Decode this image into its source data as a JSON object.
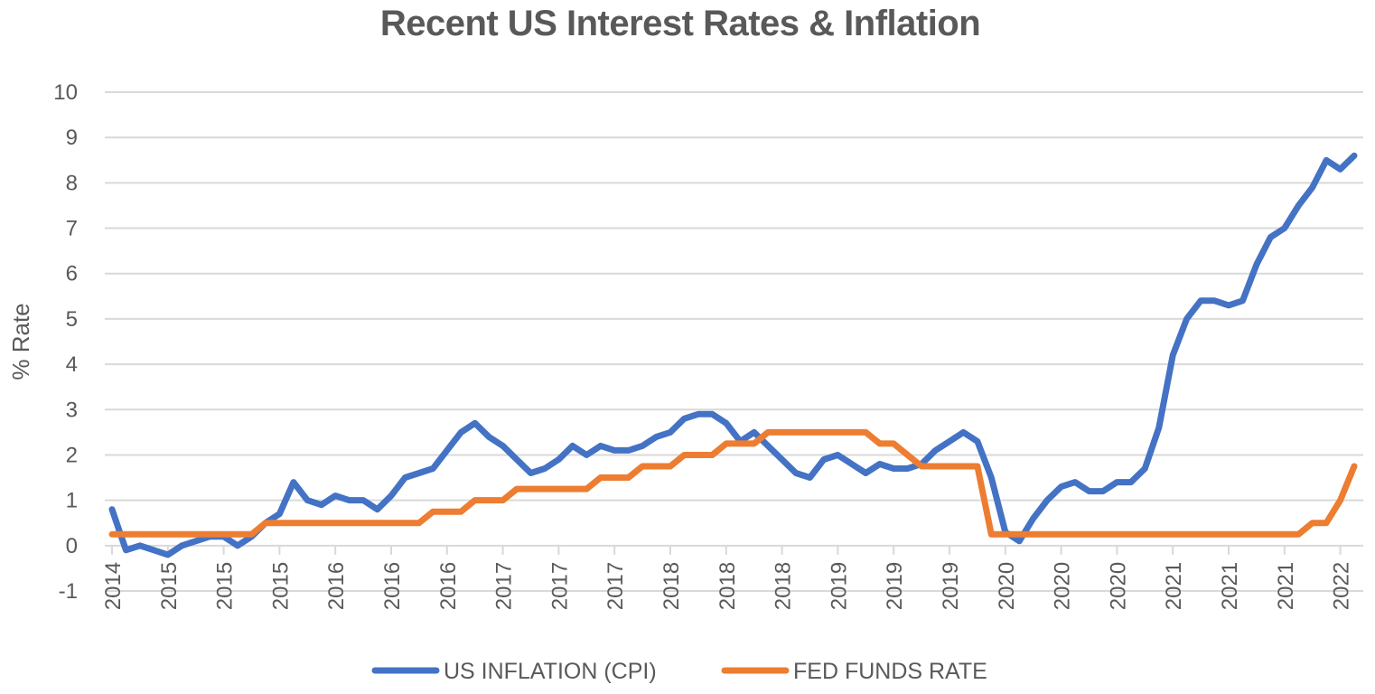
{
  "chart_data": {
    "type": "line",
    "title": "Recent US Interest Rates & Inflation",
    "xlabel": "",
    "ylabel": "% Rate",
    "ylim": [
      -1,
      10
    ],
    "yticks": [
      -1,
      0,
      1,
      2,
      3,
      4,
      5,
      6,
      7,
      8,
      9,
      10
    ],
    "grid": true,
    "legend_position": "bottom",
    "x_tick_labels": [
      "2014",
      "2015",
      "2015",
      "2015",
      "2016",
      "2016",
      "2016",
      "2017",
      "2017",
      "2017",
      "2018",
      "2018",
      "2018",
      "2019",
      "2019",
      "2019",
      "2020",
      "2020",
      "2020",
      "2021",
      "2021",
      "2021",
      "2022"
    ],
    "points_per_tick": 4,
    "series": [
      {
        "name": "US INFLATION (CPI)",
        "color": "#4472C4",
        "values": [
          0.8,
          -0.1,
          0.0,
          -0.1,
          -0.2,
          0.0,
          0.1,
          0.2,
          0.2,
          0.0,
          0.2,
          0.5,
          0.7,
          1.4,
          1.0,
          0.9,
          1.1,
          1.0,
          1.0,
          0.8,
          1.1,
          1.5,
          1.6,
          1.7,
          2.1,
          2.5,
          2.7,
          2.4,
          2.2,
          1.9,
          1.6,
          1.7,
          1.9,
          2.2,
          2.0,
          2.2,
          2.1,
          2.1,
          2.2,
          2.4,
          2.5,
          2.8,
          2.9,
          2.9,
          2.7,
          2.3,
          2.5,
          2.2,
          1.9,
          1.6,
          1.5,
          1.9,
          2.0,
          1.8,
          1.6,
          1.8,
          1.7,
          1.7,
          1.8,
          2.1,
          2.3,
          2.5,
          2.3,
          1.5,
          0.3,
          0.1,
          0.6,
          1.0,
          1.3,
          1.4,
          1.2,
          1.2,
          1.4,
          1.4,
          1.7,
          2.6,
          4.2,
          5.0,
          5.4,
          5.4,
          5.3,
          5.4,
          6.2,
          6.8,
          7.0,
          7.5,
          7.9,
          8.5,
          8.3,
          8.6
        ]
      },
      {
        "name": "FED FUNDS RATE",
        "color": "#ED7D31",
        "values": [
          0.25,
          0.25,
          0.25,
          0.25,
          0.25,
          0.25,
          0.25,
          0.25,
          0.25,
          0.25,
          0.25,
          0.5,
          0.5,
          0.5,
          0.5,
          0.5,
          0.5,
          0.5,
          0.5,
          0.5,
          0.5,
          0.5,
          0.5,
          0.75,
          0.75,
          0.75,
          1.0,
          1.0,
          1.0,
          1.25,
          1.25,
          1.25,
          1.25,
          1.25,
          1.25,
          1.5,
          1.5,
          1.5,
          1.75,
          1.75,
          1.75,
          2.0,
          2.0,
          2.0,
          2.25,
          2.25,
          2.25,
          2.5,
          2.5,
          2.5,
          2.5,
          2.5,
          2.5,
          2.5,
          2.5,
          2.25,
          2.25,
          2.0,
          1.75,
          1.75,
          1.75,
          1.75,
          1.75,
          0.25,
          0.25,
          0.25,
          0.25,
          0.25,
          0.25,
          0.25,
          0.25,
          0.25,
          0.25,
          0.25,
          0.25,
          0.25,
          0.25,
          0.25,
          0.25,
          0.25,
          0.25,
          0.25,
          0.25,
          0.25,
          0.25,
          0.25,
          0.5,
          0.5,
          1.0,
          1.75
        ]
      }
    ]
  }
}
